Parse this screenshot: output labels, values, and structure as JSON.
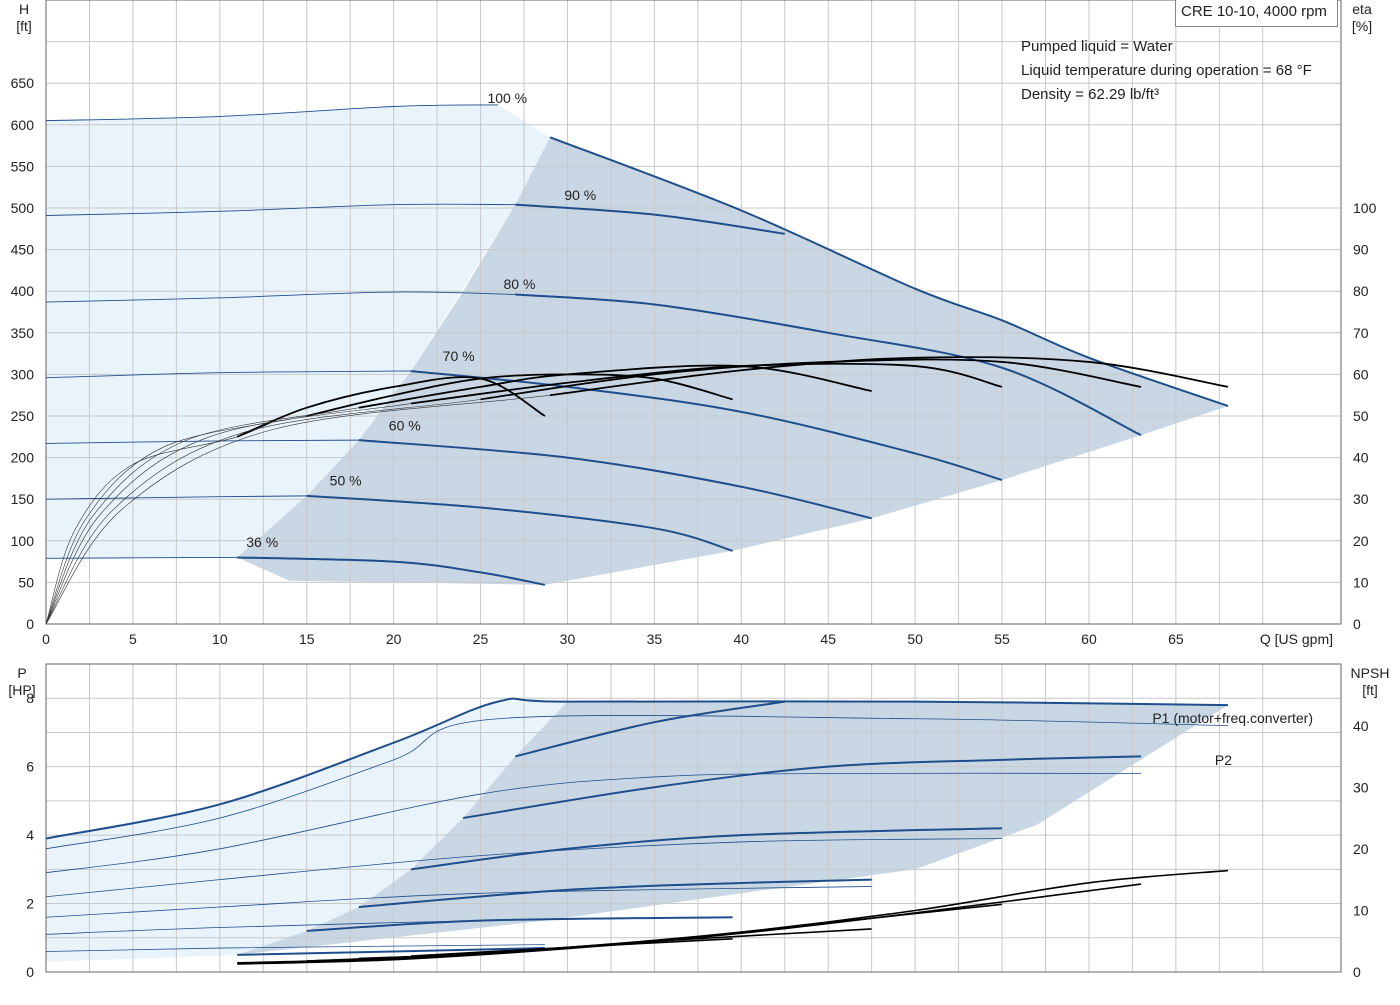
{
  "model": "CRE 10-10, 4000 rpm",
  "info": [
    "Pumped liquid = Water",
    "Liquid temperature during operation = 68 °F",
    "Density = 62.29 lb/ft³"
  ],
  "colors": {
    "blue": "#1f4e8c",
    "black": "#000000",
    "grid": "#c8c8c8",
    "light_region": "#e9f3fc",
    "dark_region": "#c9d7e4"
  },
  "chart_data": [
    {
      "type": "line",
      "title": "",
      "xlabel": "Q [US gpm]",
      "ylabel_left": "H\n[ft]",
      "ylabel_right": "eta\n[%]",
      "xlim": [
        0,
        70
      ],
      "ylim_left": [
        0,
        650
      ],
      "ylim_right": [
        0,
        100
      ],
      "x_ticks": [
        0,
        5,
        10,
        15,
        20,
        25,
        30,
        35,
        40,
        45,
        50,
        55,
        60,
        65
      ],
      "y_ticks_left": [
        0,
        50,
        100,
        150,
        200,
        250,
        300,
        350,
        400,
        450,
        500,
        550,
        600,
        650
      ],
      "y_ticks_right": [
        0,
        10,
        20,
        30,
        40,
        50,
        60,
        70,
        80,
        90,
        100
      ],
      "grid": true,
      "head_series": [
        {
          "name": "100 %",
          "points": [
            [
              0,
              605
            ],
            [
              10,
              610
            ],
            [
              20,
              622
            ],
            [
              26,
              624
            ]
          ],
          "op_points": [
            [
              29,
              585
            ],
            [
              40,
              497
            ],
            [
              50,
              403
            ],
            [
              55,
              365
            ],
            [
              60,
              320
            ],
            [
              68,
              262
            ]
          ],
          "label_x": 25.1,
          "label_y": 624
        },
        {
          "name": "90 %",
          "points": [
            [
              0,
              491
            ],
            [
              10,
              496
            ],
            [
              20,
              504
            ],
            [
              27,
              504
            ]
          ],
          "op_points": [
            [
              27,
              504
            ],
            [
              35,
              492
            ],
            [
              42.5,
              469
            ]
          ],
          "label_x": 29.3,
          "label_y": 507
        },
        {
          "name": "80 %",
          "points": [
            [
              0,
              387
            ],
            [
              10,
              392
            ],
            [
              20,
              399
            ],
            [
              27,
              396
            ]
          ],
          "op_points": [
            [
              27,
              396
            ],
            [
              35,
              384
            ],
            [
              45,
              350
            ],
            [
              55,
              308
            ],
            [
              63,
              227
            ]
          ],
          "label_x": 25.8,
          "label_y": 400
        },
        {
          "name": "70 %",
          "points": [
            [
              0,
              296
            ],
            [
              10,
              302
            ],
            [
              20,
              304
            ],
            [
              21,
              304
            ]
          ],
          "op_points": [
            [
              21,
              304
            ],
            [
              30,
              285
            ],
            [
              40,
              255
            ],
            [
              50,
              205
            ],
            [
              55,
              173
            ]
          ],
          "label_x": 22.3,
          "label_y": 314
        },
        {
          "name": "60 %",
          "points": [
            [
              0,
              217
            ],
            [
              10,
              220
            ],
            [
              18,
              221
            ]
          ],
          "op_points": [
            [
              18,
              221
            ],
            [
              30,
              200
            ],
            [
              40,
              165
            ],
            [
              47.5,
              127
            ]
          ],
          "label_x": 19.2,
          "label_y": 230
        },
        {
          "name": "50 %",
          "points": [
            [
              0,
              150
            ],
            [
              10,
              153
            ],
            [
              15,
              154
            ]
          ],
          "op_points": [
            [
              15,
              154
            ],
            [
              25,
              140
            ],
            [
              35,
              115
            ],
            [
              39.5,
              88
            ]
          ],
          "label_x": 15.8,
          "label_y": 164
        },
        {
          "name": "36 %",
          "points": [
            [
              0,
              79
            ],
            [
              10,
              80
            ],
            [
              11,
              80
            ]
          ],
          "op_points": [
            [
              11,
              80
            ],
            [
              20,
              75
            ],
            [
              25,
              62
            ],
            [
              28.7,
              47
            ]
          ],
          "label_x": 11.0,
          "label_y": 90
        }
      ],
      "eta_series": [
        {
          "name": "",
          "points": [
            [
              11,
              45
            ],
            [
              15,
              52
            ],
            [
              20,
              57
            ],
            [
              25,
              59
            ],
            [
              28.7,
              50
            ]
          ]
        },
        {
          "name": "",
          "points": [
            [
              15,
              50
            ],
            [
              20,
              55
            ],
            [
              25,
              59
            ],
            [
              30,
              60
            ],
            [
              35,
              59
            ],
            [
              39.5,
              54
            ]
          ]
        },
        {
          "name": "",
          "points": [
            [
              18,
              52
            ],
            [
              25,
              57
            ],
            [
              30,
              60
            ],
            [
              40,
              62
            ],
            [
              47.5,
              56
            ]
          ]
        },
        {
          "name": "",
          "points": [
            [
              21,
              53
            ],
            [
              30,
              58
            ],
            [
              40,
              62
            ],
            [
              50,
              62
            ],
            [
              55,
              57
            ]
          ]
        },
        {
          "name": "",
          "points": [
            [
              25,
              54
            ],
            [
              35,
              60
            ],
            [
              45,
              63
            ],
            [
              55,
              63
            ],
            [
              63,
              57
            ]
          ]
        },
        {
          "name": "",
          "points": [
            [
              29,
              55
            ],
            [
              40,
              61
            ],
            [
              50,
              64
            ],
            [
              60,
              63
            ],
            [
              68,
              57
            ]
          ]
        }
      ]
    },
    {
      "type": "line",
      "title": "",
      "xlabel": "",
      "ylabel_left": "P\n[HP]",
      "ylabel_right": "NPSH\n[ft]",
      "xlim": [
        0,
        70
      ],
      "ylim_left": [
        0,
        8
      ],
      "ylim_right": [
        0,
        40
      ],
      "y_ticks_left": [
        0,
        2,
        4,
        6,
        8
      ],
      "y_ticks_right": [
        0,
        10,
        20,
        30,
        40
      ],
      "grid": true,
      "series_labels": [
        "P1 (motor+freq.converter)",
        "P2"
      ],
      "p1_series": [
        {
          "name": "P1 (motor+freq.converter)",
          "points": [
            [
              0,
              3.9
            ],
            [
              10,
              4.9
            ],
            [
              20,
              6.7
            ],
            [
              26,
              7.9
            ],
            [
              30,
              7.9
            ],
            [
              50,
              7.9
            ],
            [
              68,
              7.8
            ]
          ]
        },
        {
          "name": "",
          "points": [
            [
              27,
              6.3
            ],
            [
              35,
              7.3
            ],
            [
              42.5,
              7.9
            ]
          ]
        },
        {
          "name": "",
          "points": [
            [
              24,
              4.5
            ],
            [
              35,
              5.4
            ],
            [
              45,
              6.0
            ],
            [
              55,
              6.2
            ],
            [
              63,
              6.3
            ]
          ]
        },
        {
          "name": "",
          "points": [
            [
              21,
              3.0
            ],
            [
              30,
              3.6
            ],
            [
              40,
              4.0
            ],
            [
              55,
              4.2
            ]
          ]
        },
        {
          "name": "",
          "points": [
            [
              18,
              1.9
            ],
            [
              30,
              2.4
            ],
            [
              40,
              2.6
            ],
            [
              47.5,
              2.7
            ]
          ]
        },
        {
          "name": "",
          "points": [
            [
              15,
              1.2
            ],
            [
              25,
              1.5
            ],
            [
              39.5,
              1.6
            ]
          ]
        },
        {
          "name": "",
          "points": [
            [
              11,
              0.5
            ],
            [
              20,
              0.6
            ],
            [
              28.7,
              0.7
            ]
          ]
        }
      ],
      "p2_series": [
        {
          "name": "P2",
          "points": [
            [
              0,
              3.6
            ],
            [
              10,
              4.5
            ],
            [
              20,
              6.2
            ],
            [
              26,
              7.4
            ],
            [
              50,
              7.4
            ],
            [
              68,
              7.2
            ]
          ]
        },
        {
          "name": "",
          "points": [
            [
              0,
              2.9
            ],
            [
              10,
              3.6
            ],
            [
              25,
              5.2
            ],
            [
              35,
              5.7
            ],
            [
              45,
              5.8
            ],
            [
              63,
              5.8
            ]
          ]
        },
        {
          "name": "",
          "points": [
            [
              0,
              2.2
            ],
            [
              10,
              2.7
            ],
            [
              25,
              3.4
            ],
            [
              40,
              3.8
            ],
            [
              55,
              3.9
            ]
          ]
        },
        {
          "name": "",
          "points": [
            [
              0,
              1.6
            ],
            [
              10,
              1.9
            ],
            [
              25,
              2.3
            ],
            [
              47.5,
              2.5
            ]
          ]
        },
        {
          "name": "",
          "points": [
            [
              0,
              1.1
            ],
            [
              10,
              1.3
            ],
            [
              25,
              1.5
            ],
            [
              39.5,
              1.6
            ]
          ]
        },
        {
          "name": "",
          "points": [
            [
              0,
              0.6
            ],
            [
              10,
              0.7
            ],
            [
              28.7,
              0.8
            ]
          ]
        }
      ],
      "npsh_series": [
        {
          "name": "",
          "points": [
            [
              11,
              1.5
            ],
            [
              20,
              2.2
            ],
            [
              30,
              4.0
            ],
            [
              40,
              6.5
            ],
            [
              50,
              10.0
            ],
            [
              60,
              14.5
            ],
            [
              68,
              16.5
            ]
          ]
        },
        {
          "name": "",
          "points": [
            [
              11,
              1.3
            ],
            [
              20,
              2.0
            ],
            [
              30,
              3.8
            ],
            [
              40,
              6.3
            ],
            [
              50,
              9.6
            ],
            [
              63,
              14.3
            ]
          ]
        },
        {
          "name": "",
          "points": [
            [
              15,
              1.8
            ],
            [
              25,
              3.0
            ],
            [
              35,
              5.0
            ],
            [
              45,
              8.0
            ],
            [
              55,
              11.0
            ]
          ]
        },
        {
          "name": "",
          "points": [
            [
              18,
              2.2
            ],
            [
              25,
              3.0
            ],
            [
              35,
              5.0
            ],
            [
              47.5,
              7.0
            ]
          ]
        },
        {
          "name": "",
          "points": [
            [
              21,
              2.6
            ],
            [
              30,
              4.0
            ],
            [
              39.5,
              5.4
            ]
          ]
        },
        {
          "name": "",
          "points": [
            [
              25,
              3.1
            ],
            [
              28.7,
              3.6
            ]
          ]
        }
      ]
    }
  ]
}
